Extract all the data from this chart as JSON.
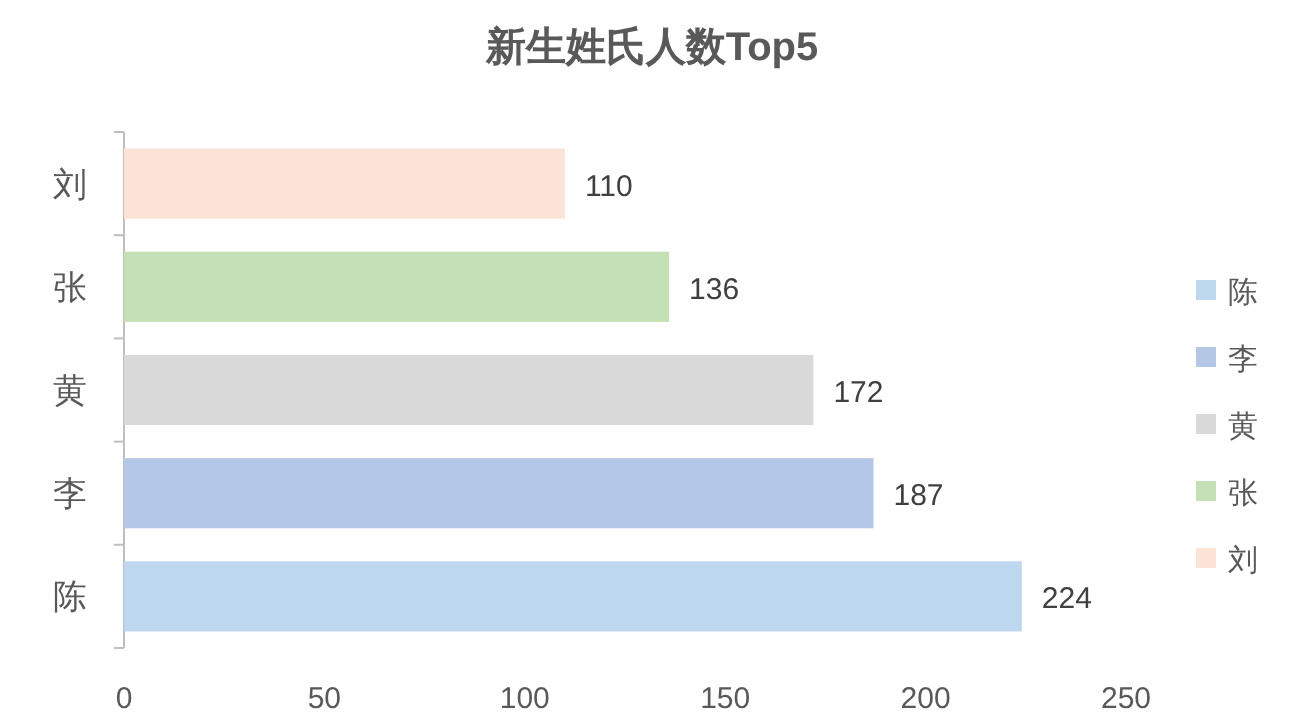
{
  "chart_data": {
    "type": "bar",
    "orientation": "horizontal",
    "title": "新生姓氏人数Top5",
    "categories": [
      "刘",
      "张",
      "黄",
      "李",
      "陈"
    ],
    "series": [
      {
        "name": "陈",
        "color": "#bdd7ee",
        "values": [
          null,
          null,
          null,
          null,
          224
        ]
      },
      {
        "name": "李",
        "color": "#b4c7e7",
        "values": [
          null,
          null,
          null,
          187,
          null
        ]
      },
      {
        "name": "黄",
        "color": "#d9d9d9",
        "values": [
          null,
          null,
          172,
          null,
          null
        ]
      },
      {
        "name": "张",
        "color": "#c5e0b4",
        "values": [
          null,
          136,
          null,
          null,
          null
        ]
      },
      {
        "name": "刘",
        "color": "#fbe3d6",
        "values": [
          110,
          null,
          null,
          null,
          null
        ]
      }
    ],
    "xlim": [
      0,
      250
    ],
    "xticks": [
      0,
      50,
      100,
      150,
      200,
      250
    ],
    "data_labels": true,
    "legend": "right",
    "grid": false
  }
}
